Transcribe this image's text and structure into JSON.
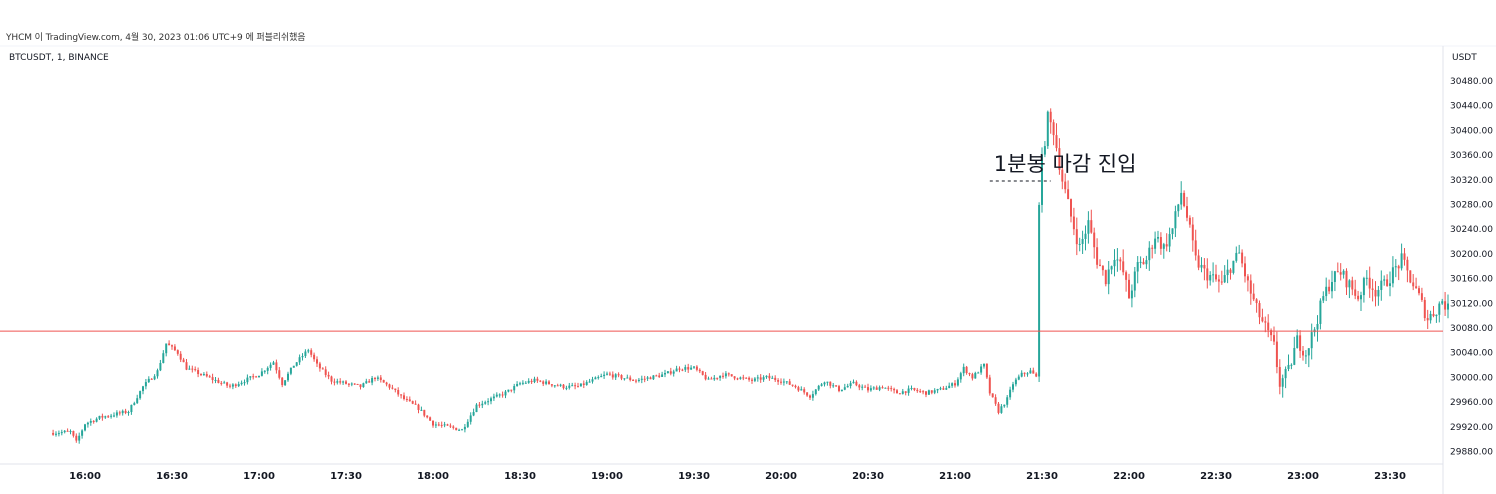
{
  "header": {
    "attribution": "YHCM 이 TradingView.com, 4월 30, 2023 01:06 UTC+9 에 퍼블리쉬했음",
    "symbol": "BTCUSDT, 1, BINANCE",
    "unit": "USDT"
  },
  "colors": {
    "up": "#26a69a",
    "down": "#ef5350",
    "hline": "#ef5350",
    "annotation_line": "#131722",
    "grid_border": "#e0e3eb"
  },
  "chart_data": {
    "type": "candlestick",
    "timeframe_minutes": 1,
    "x_ticks": [
      "16:00",
      "16:30",
      "17:00",
      "17:30",
      "18:00",
      "18:30",
      "19:00",
      "19:30",
      "20:00",
      "20:30",
      "21:00",
      "21:30",
      "22:00",
      "22:30",
      "23:00",
      "23:30"
    ],
    "y_ticks": [
      29880,
      29920,
      29960,
      30000,
      30040,
      30080,
      30120,
      30160,
      30200,
      30240,
      30280,
      30320,
      30360,
      30400,
      30440,
      30480
    ],
    "ylim": [
      29860,
      30510
    ],
    "horizontal_line": {
      "price": 30075
    },
    "annotation": {
      "text": "1분봉 마감 진입",
      "price": 30318,
      "x_from": "21:12",
      "x_to": "21:33"
    },
    "close_path": [
      [
        "15:48",
        29910
      ],
      [
        "15:55",
        29912
      ],
      [
        "15:57",
        29895
      ],
      [
        "16:00",
        29925
      ],
      [
        "16:05",
        29935
      ],
      [
        "16:10",
        29940
      ],
      [
        "16:15",
        29945
      ],
      [
        "16:20",
        29985
      ],
      [
        "16:25",
        30010
      ],
      [
        "16:28",
        30055
      ],
      [
        "16:32",
        30040
      ],
      [
        "16:35",
        30015
      ],
      [
        "16:40",
        30005
      ],
      [
        "16:45",
        29995
      ],
      [
        "16:50",
        29985
      ],
      [
        "16:55",
        29995
      ],
      [
        "17:00",
        30005
      ],
      [
        "17:05",
        30025
      ],
      [
        "17:08",
        29990
      ],
      [
        "17:12",
        30020
      ],
      [
        "17:17",
        30045
      ],
      [
        "17:20",
        30020
      ],
      [
        "17:25",
        29995
      ],
      [
        "17:30",
        29990
      ],
      [
        "17:35",
        29985
      ],
      [
        "17:40",
        30000
      ],
      [
        "17:45",
        29985
      ],
      [
        "17:50",
        29965
      ],
      [
        "17:55",
        29950
      ],
      [
        "18:00",
        29925
      ],
      [
        "18:05",
        29920
      ],
      [
        "18:10",
        29915
      ],
      [
        "18:15",
        29955
      ],
      [
        "18:20",
        29965
      ],
      [
        "18:25",
        29975
      ],
      [
        "18:30",
        29990
      ],
      [
        "18:35",
        29995
      ],
      [
        "18:40",
        29990
      ],
      [
        "18:45",
        29985
      ],
      [
        "18:50",
        29985
      ],
      [
        "18:55",
        29995
      ],
      [
        "19:00",
        30005
      ],
      [
        "19:05",
        30000
      ],
      [
        "19:10",
        29995
      ],
      [
        "19:15",
        30000
      ],
      [
        "19:20",
        30005
      ],
      [
        "19:25",
        30015
      ],
      [
        "19:30",
        30015
      ],
      [
        "19:35",
        29995
      ],
      [
        "19:40",
        30005
      ],
      [
        "19:45",
        30000
      ],
      [
        "19:50",
        29995
      ],
      [
        "19:55",
        30000
      ],
      [
        "20:00",
        29995
      ],
      [
        "20:05",
        29985
      ],
      [
        "20:10",
        29970
      ],
      [
        "20:15",
        29995
      ],
      [
        "20:20",
        29980
      ],
      [
        "20:25",
        29990
      ],
      [
        "20:30",
        29980
      ],
      [
        "20:35",
        29985
      ],
      [
        "20:40",
        29975
      ],
      [
        "20:45",
        29980
      ],
      [
        "20:50",
        29975
      ],
      [
        "20:55",
        29980
      ],
      [
        "21:00",
        29990
      ],
      [
        "21:03",
        30015
      ],
      [
        "21:06",
        30000
      ],
      [
        "21:10",
        30020
      ],
      [
        "21:12",
        29975
      ],
      [
        "21:15",
        29945
      ],
      [
        "21:18",
        29965
      ],
      [
        "21:20",
        29990
      ],
      [
        "21:23",
        30005
      ],
      [
        "21:26",
        30010
      ],
      [
        "21:28",
        30000
      ],
      [
        "21:29",
        30290
      ],
      [
        "21:30",
        30350
      ],
      [
        "21:32",
        30420
      ],
      [
        "21:34",
        30400
      ],
      [
        "21:37",
        30320
      ],
      [
        "21:40",
        30260
      ],
      [
        "21:43",
        30210
      ],
      [
        "21:46",
        30250
      ],
      [
        "21:49",
        30190
      ],
      [
        "21:52",
        30160
      ],
      [
        "21:55",
        30200
      ],
      [
        "21:58",
        30170
      ],
      [
        "22:00",
        30130
      ],
      [
        "22:03",
        30180
      ],
      [
        "22:06",
        30190
      ],
      [
        "22:09",
        30230
      ],
      [
        "22:12",
        30210
      ],
      [
        "22:15",
        30240
      ],
      [
        "22:18",
        30300
      ],
      [
        "22:20",
        30260
      ],
      [
        "22:23",
        30190
      ],
      [
        "22:26",
        30170
      ],
      [
        "22:29",
        30160
      ],
      [
        "22:32",
        30150
      ],
      [
        "22:35",
        30180
      ],
      [
        "22:38",
        30200
      ],
      [
        "22:41",
        30150
      ],
      [
        "22:44",
        30110
      ],
      [
        "22:47",
        30080
      ],
      [
        "22:50",
        30050
      ],
      [
        "22:52",
        29990
      ],
      [
        "22:55",
        30010
      ],
      [
        "22:58",
        30060
      ],
      [
        "23:01",
        30040
      ],
      [
        "23:04",
        30080
      ],
      [
        "23:07",
        30130
      ],
      [
        "23:10",
        30160
      ],
      [
        "23:13",
        30170
      ],
      [
        "23:16",
        30150
      ],
      [
        "23:19",
        30130
      ],
      [
        "23:22",
        30160
      ],
      [
        "23:25",
        30140
      ],
      [
        "23:28",
        30150
      ],
      [
        "23:31",
        30170
      ],
      [
        "23:34",
        30190
      ],
      [
        "23:37",
        30160
      ],
      [
        "23:40",
        30130
      ],
      [
        "23:43",
        30095
      ],
      [
        "23:46",
        30110
      ],
      [
        "23:48",
        30125
      ],
      [
        "23:50",
        30110
      ]
    ]
  }
}
